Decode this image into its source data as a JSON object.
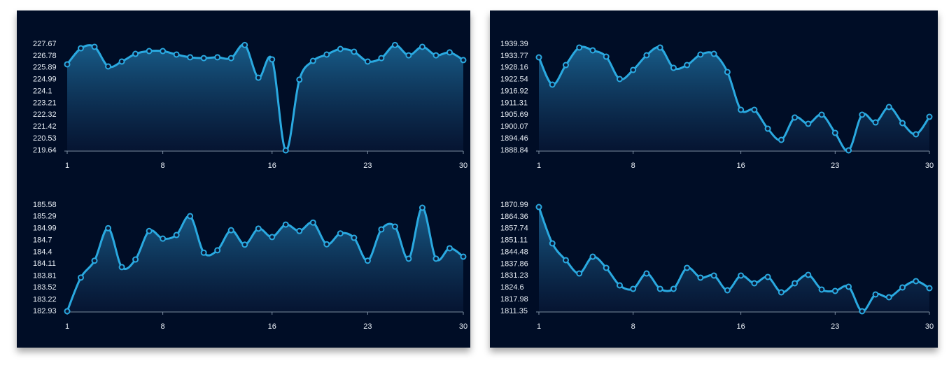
{
  "chart_data": [
    {
      "type": "line",
      "area": true,
      "x": [
        1,
        2,
        3,
        4,
        5,
        6,
        7,
        8,
        9,
        10,
        11,
        12,
        13,
        14,
        15,
        16,
        17,
        18,
        19,
        20,
        21,
        22,
        23,
        24,
        25,
        26,
        27,
        28,
        29,
        30
      ],
      "xlim": [
        1,
        30
      ],
      "xticks": [
        1,
        8,
        16,
        23,
        30
      ],
      "ylim": [
        219.64,
        227.67
      ],
      "yticks": [
        219.64,
        220.53,
        221.42,
        222.32,
        223.21,
        224.1,
        224.99,
        225.89,
        226.78,
        227.67
      ],
      "series": [
        {
          "color": "#2aa9e0",
          "values": [
            226.14,
            227.35,
            227.46,
            225.98,
            226.35,
            226.93,
            227.14,
            227.14,
            226.88,
            226.67,
            226.61,
            226.67,
            226.61,
            227.6,
            225.13,
            226.51,
            219.64,
            224.98,
            226.4,
            226.88,
            227.3,
            227.09,
            226.35,
            226.61,
            227.6,
            226.82,
            227.46,
            226.82,
            227.04,
            226.46
          ]
        }
      ]
    },
    {
      "type": "line",
      "area": true,
      "x": [
        1,
        2,
        3,
        4,
        5,
        6,
        7,
        8,
        9,
        10,
        11,
        12,
        13,
        14,
        15,
        16,
        17,
        18,
        19,
        20,
        21,
        22,
        23,
        24,
        25,
        26,
        27,
        28,
        29,
        30
      ],
      "xlim": [
        1,
        30
      ],
      "xticks": [
        1,
        8,
        16,
        23,
        30
      ],
      "ylim": [
        182.93,
        185.58
      ],
      "yticks": [
        182.93,
        183.22,
        183.52,
        183.81,
        184.11,
        184.4,
        184.7,
        184.99,
        185.29,
        185.58
      ],
      "series": [
        {
          "color": "#2aa9e0",
          "values": [
            182.93,
            183.77,
            184.19,
            185.0,
            184.03,
            184.22,
            184.93,
            184.74,
            184.83,
            185.3,
            184.39,
            184.45,
            184.95,
            184.59,
            184.99,
            184.78,
            185.09,
            184.93,
            185.14,
            184.6,
            184.87,
            184.76,
            184.19,
            184.97,
            185.04,
            184.24,
            185.51,
            184.24,
            184.5,
            184.29
          ]
        }
      ]
    },
    {
      "type": "line",
      "area": true,
      "x": [
        1,
        2,
        3,
        4,
        5,
        6,
        7,
        8,
        9,
        10,
        11,
        12,
        13,
        14,
        15,
        16,
        17,
        18,
        19,
        20,
        21,
        22,
        23,
        24,
        25,
        26,
        27,
        28,
        29,
        30
      ],
      "xlim": [
        1,
        30
      ],
      "xticks": [
        1,
        8,
        16,
        23,
        30
      ],
      "ylim": [
        1888.84,
        1939.39
      ],
      "yticks": [
        1888.84,
        1894.46,
        1900.07,
        1905.69,
        1911.31,
        1916.92,
        1922.54,
        1928.16,
        1933.77,
        1939.39
      ],
      "series": [
        {
          "color": "#2aa9e0",
          "values": [
            1933.07,
            1920.1,
            1929.41,
            1937.73,
            1936.4,
            1933.4,
            1922.76,
            1927.09,
            1934.07,
            1937.73,
            1928.08,
            1929.41,
            1934.4,
            1934.73,
            1926.09,
            1908.13,
            1908.13,
            1899.15,
            1893.83,
            1904.47,
            1901.48,
            1905.8,
            1897.16,
            1888.84,
            1905.8,
            1902.14,
            1909.46,
            1901.81,
            1896.49,
            1904.8
          ]
        }
      ]
    },
    {
      "type": "line",
      "area": true,
      "x": [
        1,
        2,
        3,
        4,
        5,
        6,
        7,
        8,
        9,
        10,
        11,
        12,
        13,
        14,
        15,
        16,
        17,
        18,
        19,
        20,
        21,
        22,
        23,
        24,
        25,
        26,
        27,
        28,
        29,
        30
      ],
      "xlim": [
        1,
        30
      ],
      "xticks": [
        1,
        8,
        16,
        23,
        30
      ],
      "ylim": [
        1811.35,
        1870.99
      ],
      "yticks": [
        1811.35,
        1817.98,
        1824.6,
        1831.23,
        1837.86,
        1844.48,
        1851.11,
        1857.74,
        1864.36,
        1870.99
      ],
      "series": [
        {
          "color": "#2aa9e0",
          "values": [
            1869.81,
            1849.41,
            1840.0,
            1832.54,
            1841.96,
            1835.68,
            1825.87,
            1823.91,
            1832.54,
            1823.91,
            1823.91,
            1835.68,
            1830.19,
            1831.37,
            1823.13,
            1831.37,
            1827.05,
            1830.58,
            1821.95,
            1827.05,
            1831.76,
            1823.52,
            1822.74,
            1825.09,
            1811.35,
            1820.77,
            1819.2,
            1824.7,
            1828.23,
            1824.3
          ]
        }
      ]
    }
  ]
}
